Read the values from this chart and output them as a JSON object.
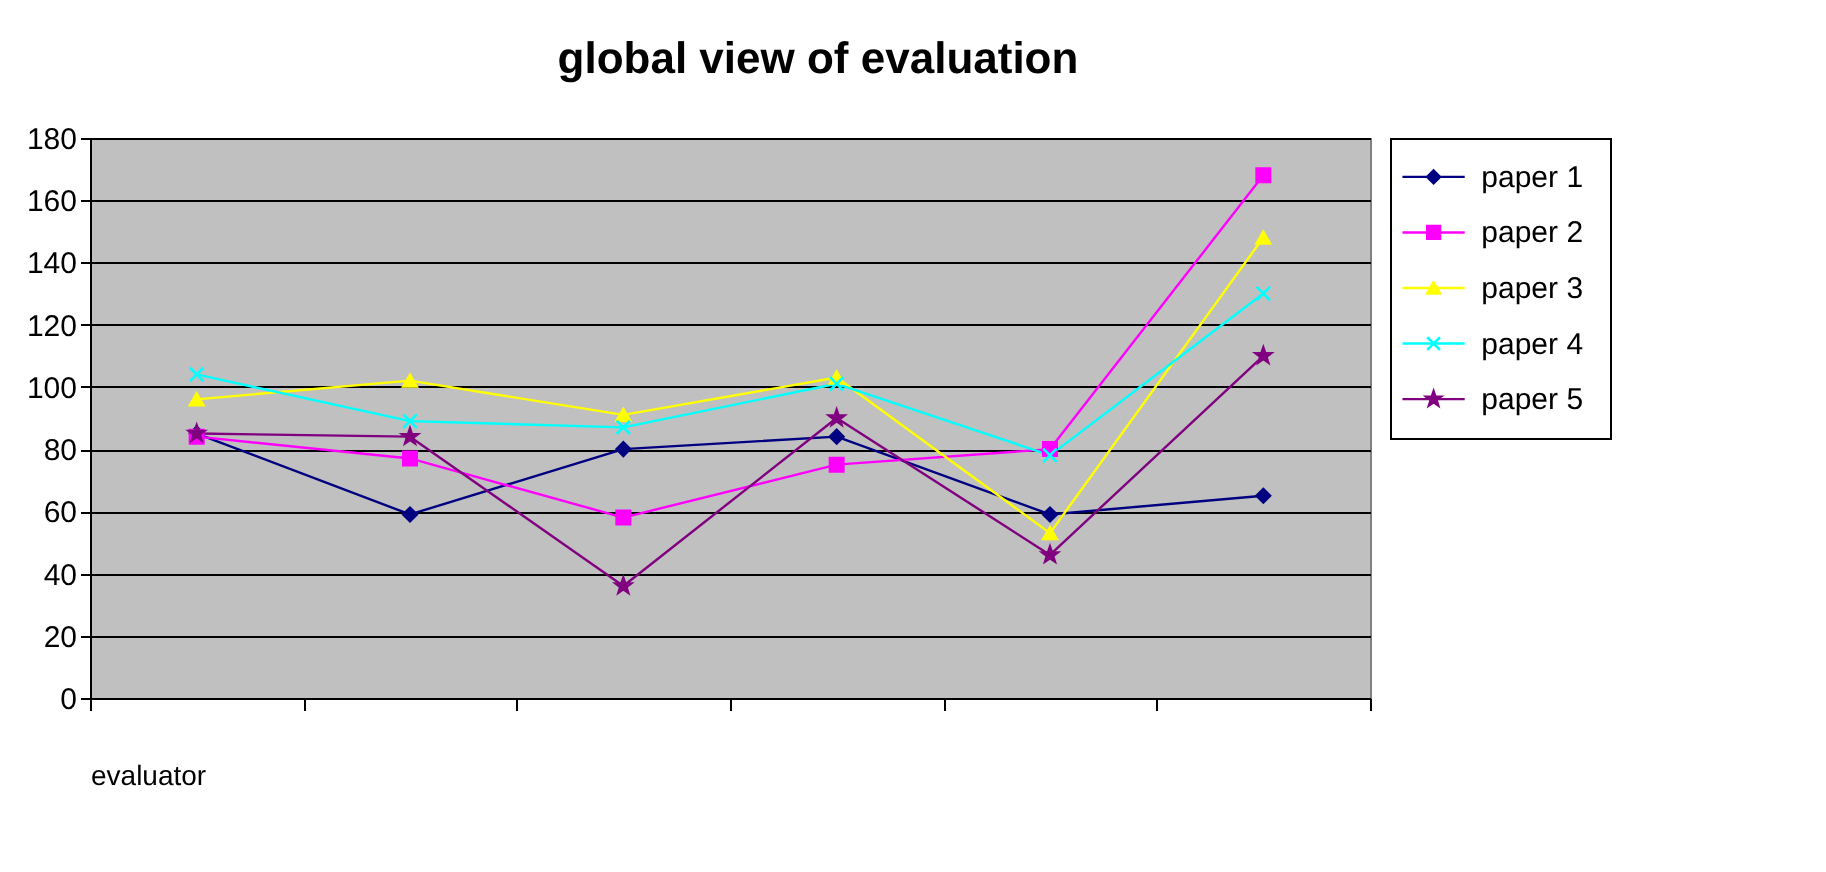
{
  "chart_data": {
    "type": "line",
    "title": "global view of evaluation",
    "xlabel": "evaluator",
    "categories": [
      null,
      null,
      null,
      null,
      null,
      null
    ],
    "series": [
      {
        "name": "paper 1",
        "color": "#000080",
        "marker": "diamond",
        "values": [
          85,
          59,
          80,
          84,
          59,
          65
        ]
      },
      {
        "name": "paper 2",
        "color": "#ff00ff",
        "marker": "square",
        "values": [
          84,
          77,
          58,
          75,
          80,
          168
        ]
      },
      {
        "name": "paper 3",
        "color": "#ffff00",
        "marker": "triangle",
        "values": [
          96,
          102,
          91,
          103,
          53,
          148
        ]
      },
      {
        "name": "paper 4",
        "color": "#00ffff",
        "marker": "cross",
        "values": [
          104,
          89,
          87,
          101,
          78,
          130
        ]
      },
      {
        "name": "paper 5",
        "color": "#800080",
        "marker": "star",
        "values": [
          85,
          84,
          36,
          90,
          46,
          110
        ]
      }
    ],
    "ylim": [
      0,
      180
    ],
    "yticks": [
      0,
      20,
      40,
      60,
      80,
      100,
      120,
      140,
      160,
      180
    ],
    "grid": "y",
    "legend": "right",
    "line_style": "solid"
  }
}
